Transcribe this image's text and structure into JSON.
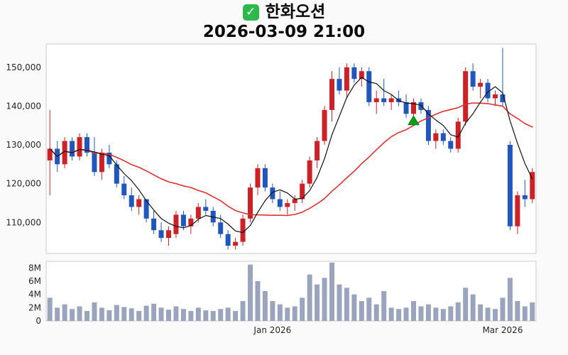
{
  "header": {
    "check_glyph": "✓",
    "title": "한화오션",
    "subtitle": "2026-03-09 21:00"
  },
  "chart_data": {
    "type": "candlestick",
    "title": "한화오션",
    "timestamp": "2026-03-09 21:00",
    "legend_position": "none",
    "grid": false,
    "price_axis": {
      "tick_values": [
        150000,
        140000,
        130000,
        120000,
        110000
      ],
      "tick_labels": [
        "150,000",
        "140,000",
        "130,000",
        "120,000",
        "110,000"
      ],
      "ylim": [
        102000,
        156000
      ]
    },
    "volume_axis": {
      "tick_values": [
        8000000,
        6000000,
        4000000,
        2000000,
        0
      ],
      "tick_labels": [
        "8M",
        "6M",
        "4M",
        "2M",
        "0"
      ],
      "max": 9000000
    },
    "x_axis_labels": [
      {
        "label": "Jan 2026",
        "index": 30
      },
      {
        "label": "Mar 2026",
        "index": 61
      }
    ],
    "colors": {
      "up": "#cc2127",
      "down": "#2157bd",
      "ma_short": "#111111",
      "ma_long": "#e03131",
      "volume": "#9aa5bd",
      "marker": "#0aa21c",
      "marker_stroke": "#067712",
      "plot_border": "#cccccc",
      "plot_bg": "#ffffff",
      "checkbox_green": "#2eb84b"
    },
    "ma": {
      "short_period": 5,
      "long_period": 20
    },
    "marker": {
      "index": 49,
      "shape": "triangle-up"
    },
    "candles": [
      [
        126000,
        139000,
        117000,
        129000,
        3500000
      ],
      [
        129000,
        131000,
        123000,
        125000,
        2000000
      ],
      [
        125000,
        132000,
        124000,
        131000,
        2500000
      ],
      [
        131000,
        132000,
        126000,
        127000,
        1800000
      ],
      [
        127000,
        133000,
        126000,
        132000,
        2200000
      ],
      [
        132000,
        133000,
        127000,
        128000,
        1500000
      ],
      [
        128000,
        132000,
        122000,
        123000,
        2800000
      ],
      [
        123000,
        129000,
        121000,
        128000,
        2000000
      ],
      [
        128000,
        130000,
        124000,
        125000,
        1600000
      ],
      [
        125000,
        126000,
        119000,
        120000,
        2400000
      ],
      [
        120000,
        122000,
        116000,
        117000,
        2100000
      ],
      [
        117000,
        119000,
        113000,
        114000,
        1900000
      ],
      [
        114000,
        117000,
        112000,
        116000,
        1500000
      ],
      [
        116000,
        116000,
        110000,
        111000,
        2300000
      ],
      [
        111000,
        113000,
        107000,
        108000,
        2600000
      ],
      [
        108000,
        110000,
        105000,
        106000,
        2000000
      ],
      [
        106000,
        109000,
        104000,
        108000,
        1700000
      ],
      [
        107000,
        113000,
        106000,
        112000,
        2200000
      ],
      [
        112000,
        113000,
        108000,
        109000,
        1800000
      ],
      [
        109000,
        112000,
        107000,
        111000,
        1500000
      ],
      [
        111000,
        115000,
        110000,
        114000,
        2000000
      ],
      [
        114000,
        116000,
        112000,
        113000,
        1600000
      ],
      [
        113000,
        114000,
        109000,
        110000,
        1500000
      ],
      [
        110000,
        112000,
        106000,
        107000,
        1800000
      ],
      [
        107000,
        108000,
        103000,
        104000,
        2000000
      ],
      [
        104000,
        106000,
        103000,
        105000,
        1500000
      ],
      [
        105000,
        112000,
        104000,
        111000,
        3000000
      ],
      [
        111000,
        120000,
        110000,
        119000,
        8500000
      ],
      [
        119000,
        125000,
        117000,
        124000,
        6000000
      ],
      [
        124000,
        125000,
        118000,
        119000,
        4500000
      ],
      [
        119000,
        120000,
        115000,
        116000,
        3000000
      ],
      [
        116000,
        118000,
        113000,
        114000,
        2500000
      ],
      [
        114000,
        116000,
        112000,
        115000,
        2000000
      ],
      [
        115000,
        117000,
        113000,
        116000,
        2200000
      ],
      [
        116000,
        121000,
        115000,
        120000,
        3500000
      ],
      [
        120000,
        127000,
        119000,
        126000,
        7000000
      ],
      [
        126000,
        132000,
        124000,
        131000,
        5500000
      ],
      [
        131000,
        140000,
        130000,
        139000,
        6500000
      ],
      [
        139000,
        149000,
        136000,
        147000,
        8800000
      ],
      [
        147000,
        150000,
        143000,
        144000,
        5500000
      ],
      [
        144000,
        151000,
        142000,
        150000,
        5000000
      ],
      [
        150000,
        151000,
        146000,
        147000,
        4000000
      ],
      [
        147000,
        150000,
        145000,
        149000,
        3000000
      ],
      [
        149000,
        150000,
        140000,
        141000,
        3500000
      ],
      [
        141000,
        144000,
        138000,
        142000,
        2500000
      ],
      [
        142000,
        147000,
        140000,
        141000,
        4500000
      ],
      [
        141000,
        143000,
        139000,
        142000,
        2000000
      ],
      [
        142000,
        144000,
        140000,
        141000,
        1800000
      ],
      [
        141000,
        143000,
        137000,
        138000,
        2000000
      ],
      [
        138000,
        142000,
        136000,
        141000,
        3000000
      ],
      [
        141000,
        142000,
        138000,
        139000,
        2200000
      ],
      [
        139000,
        140000,
        130000,
        131000,
        2500000
      ],
      [
        131000,
        134000,
        129000,
        133000,
        2000000
      ],
      [
        133000,
        134000,
        130000,
        131000,
        1800000
      ],
      [
        131000,
        132000,
        128000,
        129000,
        2200000
      ],
      [
        129000,
        137000,
        128000,
        136000,
        2800000
      ],
      [
        136000,
        150000,
        135000,
        149000,
        5000000
      ],
      [
        149000,
        151000,
        144000,
        145000,
        4000000
      ],
      [
        145000,
        147000,
        142000,
        146000,
        2500000
      ],
      [
        146000,
        147000,
        141000,
        142000,
        2000000
      ],
      [
        142000,
        144000,
        140000,
        143000,
        1800000
      ],
      [
        143000,
        155000,
        140000,
        141000,
        3500000
      ],
      [
        130000,
        131000,
        108000,
        109000,
        6500000
      ],
      [
        109000,
        118000,
        107000,
        117000,
        3000000
      ],
      [
        117000,
        121000,
        114000,
        116000,
        2200000
      ],
      [
        116000,
        124000,
        115000,
        123000,
        2800000
      ]
    ]
  }
}
